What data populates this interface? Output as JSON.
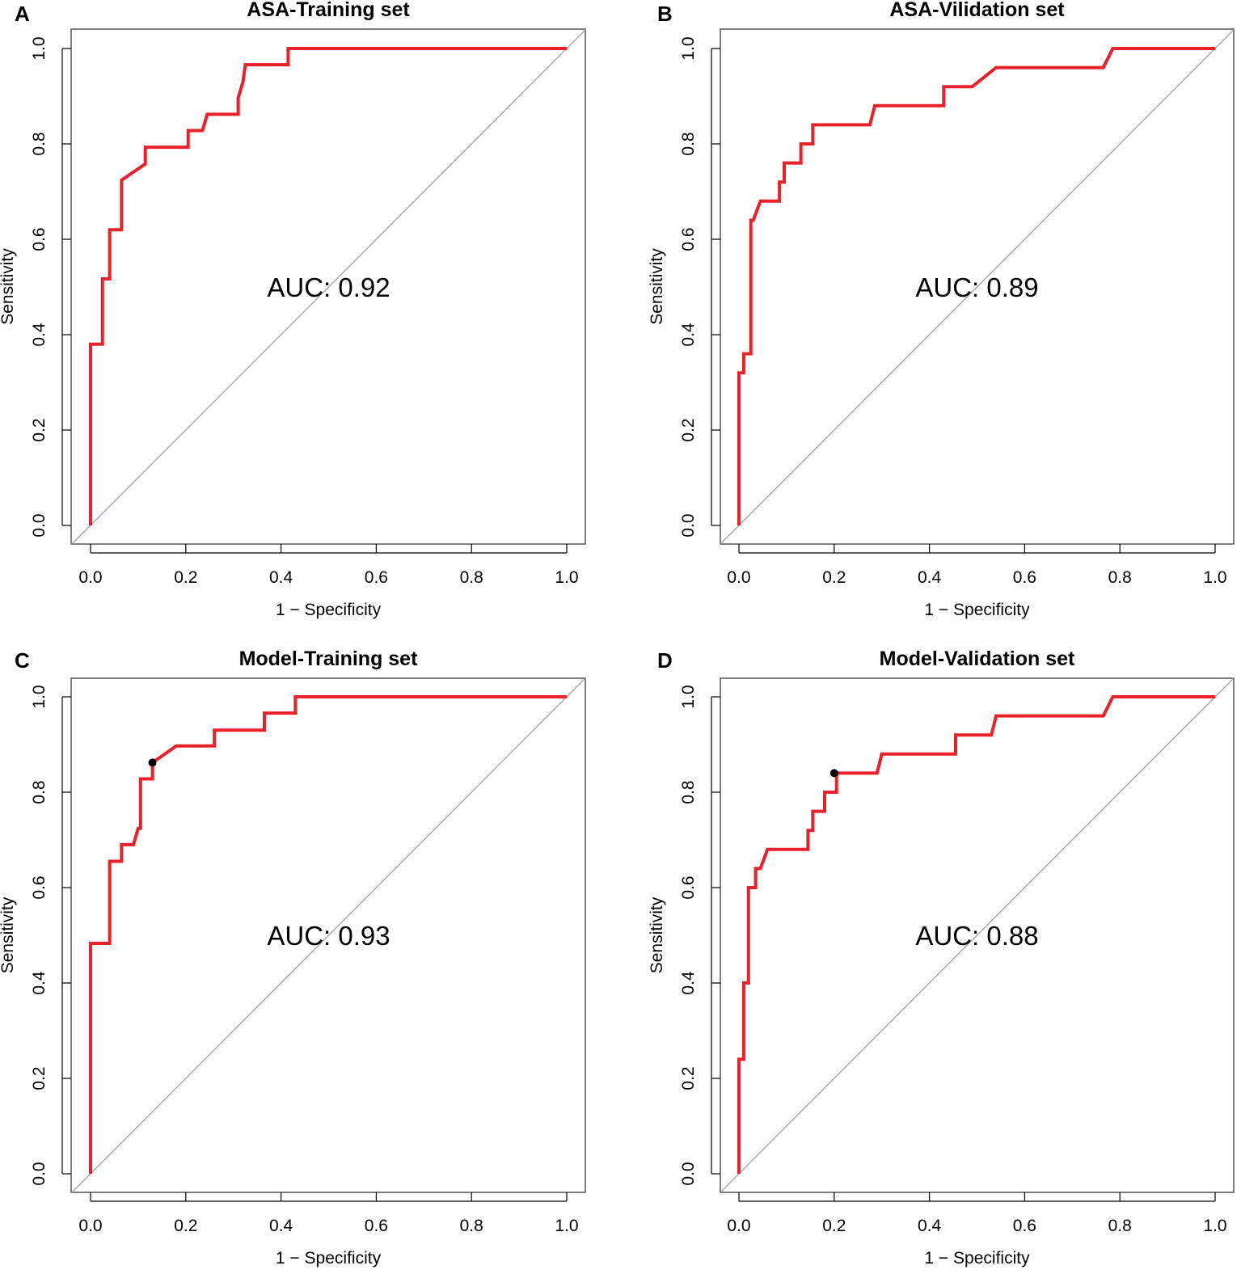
{
  "chart_data": [
    {
      "type": "line",
      "panel": "A",
      "title": "ASA-Training set",
      "xlabel": "1 − Specificity",
      "ylabel": "Sensitivity",
      "xlim": [
        0,
        1
      ],
      "ylim": [
        0,
        1
      ],
      "xticks": [
        "0.0",
        "0.2",
        "0.4",
        "0.6",
        "0.8",
        "1.0"
      ],
      "yticks": [
        "0.0",
        "0.2",
        "0.4",
        "0.6",
        "0.8",
        "1.0"
      ],
      "annotation": "AUC: 0.92",
      "series": [
        {
          "name": "ROC",
          "color": "#e8212a",
          "x": [
            0,
            0,
            0.025,
            0.025,
            0.04,
            0.04,
            0.065,
            0.065,
            0.115,
            0.115,
            0.205,
            0.205,
            0.235,
            0.245,
            0.31,
            0.31,
            0.32,
            0.325,
            0.415,
            0.415,
            1.0
          ],
          "y": [
            0,
            0.38,
            0.38,
            0.517,
            0.517,
            0.62,
            0.62,
            0.724,
            0.758,
            0.793,
            0.793,
            0.828,
            0.828,
            0.862,
            0.862,
            0.897,
            0.93,
            0.966,
            0.966,
            1.0,
            1.0
          ]
        },
        {
          "name": "Reference",
          "color": "#a0a0a0",
          "x": [
            -0.04,
            1.04
          ],
          "y": [
            -0.04,
            1.04
          ]
        }
      ],
      "points": []
    },
    {
      "type": "line",
      "panel": "B",
      "title": "ASA-Vilidation set",
      "xlabel": "1 − Specificity",
      "ylabel": "Sensitivity",
      "xlim": [
        0,
        1
      ],
      "ylim": [
        0,
        1
      ],
      "xticks": [
        "0.0",
        "0.2",
        "0.4",
        "0.6",
        "0.8",
        "1.0"
      ],
      "yticks": [
        "0.0",
        "0.2",
        "0.4",
        "0.6",
        "0.8",
        "1.0"
      ],
      "annotation": "AUC: 0.89",
      "series": [
        {
          "name": "ROC",
          "color": "#e8212a",
          "x": [
            0,
            0,
            0.01,
            0.01,
            0.025,
            0.025,
            0.03,
            0.045,
            0.085,
            0.085,
            0.095,
            0.095,
            0.13,
            0.13,
            0.155,
            0.155,
            0.275,
            0.285,
            0.43,
            0.43,
            0.49,
            0.54,
            0.765,
            0.785,
            1.0
          ],
          "y": [
            0,
            0.32,
            0.32,
            0.36,
            0.36,
            0.64,
            0.64,
            0.68,
            0.68,
            0.72,
            0.72,
            0.76,
            0.76,
            0.8,
            0.8,
            0.84,
            0.84,
            0.88,
            0.88,
            0.92,
            0.92,
            0.96,
            0.96,
            1.0,
            1.0
          ]
        },
        {
          "name": "Reference",
          "color": "#a0a0a0",
          "x": [
            -0.04,
            1.04
          ],
          "y": [
            -0.04,
            1.04
          ]
        }
      ],
      "points": []
    },
    {
      "type": "line",
      "panel": "C",
      "title": "Model-Training set",
      "xlabel": "1 − Specificity",
      "ylabel": "Sensitivity",
      "xlim": [
        0,
        1
      ],
      "ylim": [
        0,
        1
      ],
      "xticks": [
        "0.0",
        "0.2",
        "0.4",
        "0.6",
        "0.8",
        "1.0"
      ],
      "yticks": [
        "0.0",
        "0.2",
        "0.4",
        "0.6",
        "0.8",
        "1.0"
      ],
      "annotation": "AUC: 0.93",
      "series": [
        {
          "name": "ROC",
          "color": "#e8212a",
          "x": [
            0,
            0,
            0.04,
            0.04,
            0.065,
            0.065,
            0.09,
            0.1,
            0.105,
            0.105,
            0.13,
            0.13,
            0.18,
            0.26,
            0.26,
            0.365,
            0.365,
            0.43,
            0.43,
            1.0
          ],
          "y": [
            0,
            0.483,
            0.483,
            0.655,
            0.655,
            0.69,
            0.69,
            0.724,
            0.724,
            0.828,
            0.828,
            0.862,
            0.897,
            0.897,
            0.93,
            0.93,
            0.966,
            0.966,
            1.0,
            1.0
          ]
        },
        {
          "name": "Reference",
          "color": "#a0a0a0",
          "x": [
            -0.04,
            1.04
          ],
          "y": [
            -0.04,
            1.04
          ]
        }
      ],
      "points": [
        {
          "x": 0.13,
          "y": 0.862
        }
      ]
    },
    {
      "type": "line",
      "panel": "D",
      "title": "Model-Validation set",
      "xlabel": "1 − Specificity",
      "ylabel": "Sensitivity",
      "xlim": [
        0,
        1
      ],
      "ylim": [
        0,
        1
      ],
      "xticks": [
        "0.0",
        "0.2",
        "0.4",
        "0.6",
        "0.8",
        "1.0"
      ],
      "yticks": [
        "0.0",
        "0.2",
        "0.4",
        "0.6",
        "0.8",
        "1.0"
      ],
      "annotation": "AUC: 0.88",
      "series": [
        {
          "name": "ROC",
          "color": "#e8212a",
          "x": [
            0,
            0,
            0.01,
            0.01,
            0.02,
            0.02,
            0.035,
            0.035,
            0.045,
            0.06,
            0.145,
            0.145,
            0.155,
            0.155,
            0.18,
            0.18,
            0.205,
            0.205,
            0.29,
            0.3,
            0.455,
            0.455,
            0.53,
            0.54,
            0.765,
            0.785,
            1.0
          ],
          "y": [
            0,
            0.24,
            0.24,
            0.4,
            0.4,
            0.6,
            0.6,
            0.64,
            0.64,
            0.68,
            0.68,
            0.72,
            0.72,
            0.76,
            0.76,
            0.8,
            0.8,
            0.84,
            0.84,
            0.88,
            0.88,
            0.92,
            0.92,
            0.96,
            0.96,
            1.0,
            1.0
          ]
        },
        {
          "name": "Reference",
          "color": "#a0a0a0",
          "x": [
            -0.04,
            1.04
          ],
          "y": [
            -0.04,
            1.04
          ]
        }
      ],
      "points": [
        {
          "x": 0.2,
          "y": 0.84
        }
      ]
    }
  ]
}
